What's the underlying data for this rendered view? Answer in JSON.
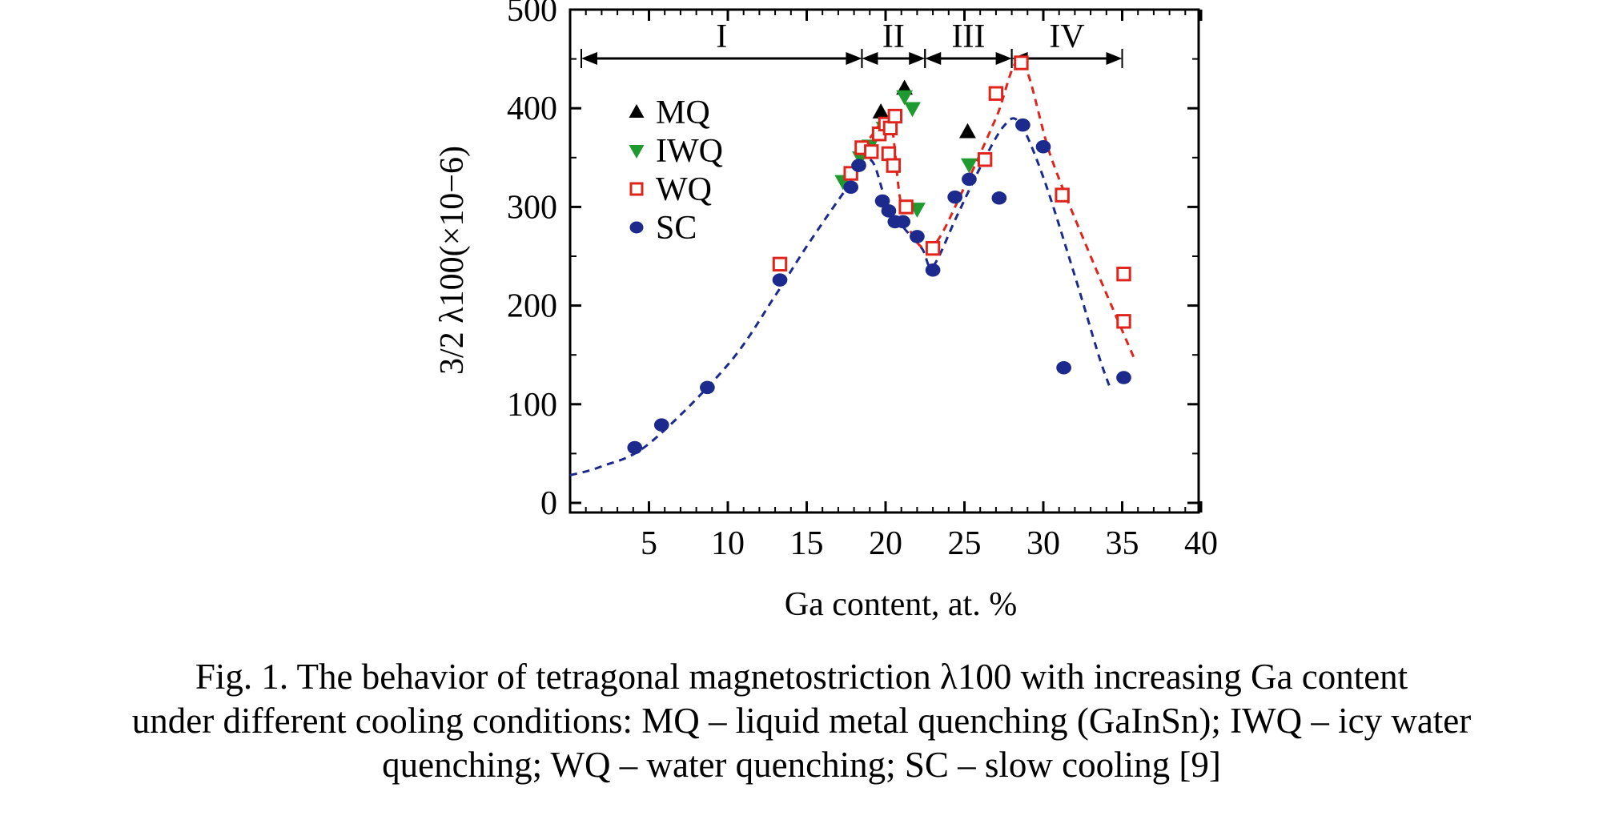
{
  "chart_data": {
    "type": "scatter",
    "xlabel": "Ga content, at. %",
    "ylabel": "3/2 λ100(×10−6)",
    "xlim": [
      0,
      40
    ],
    "ylim": [
      0,
      500
    ],
    "x_ticks": [
      5,
      10,
      15,
      20,
      25,
      30,
      35,
      40
    ],
    "y_ticks": [
      0,
      100,
      200,
      300,
      400,
      500
    ],
    "grid": false,
    "legend_position": "upper-left",
    "regions": [
      {
        "label": "I",
        "from": 0,
        "to": 18.5
      },
      {
        "label": "II",
        "from": 18.5,
        "to": 22.5
      },
      {
        "label": "III",
        "from": 22.5,
        "to": 28
      },
      {
        "label": "IV",
        "from": 28,
        "to": 35
      }
    ],
    "series": [
      {
        "name": "MQ",
        "marker": "triangle-up",
        "color": "#000000",
        "points": [
          [
            19.7,
            396
          ],
          [
            21.2,
            420
          ],
          [
            25.2,
            376
          ]
        ]
      },
      {
        "name": "IWQ",
        "marker": "triangle-down",
        "color": "#1e9a2e",
        "points": [
          [
            17.3,
            326
          ],
          [
            18.4,
            350
          ],
          [
            19.0,
            362
          ],
          [
            19.9,
            380
          ],
          [
            21.2,
            412
          ],
          [
            21.7,
            400
          ],
          [
            22.0,
            298
          ],
          [
            25.3,
            343
          ]
        ]
      },
      {
        "name": "WQ",
        "marker": "square-open",
        "color": "#e0241c",
        "points": [
          [
            13.3,
            242
          ],
          [
            17.8,
            334
          ],
          [
            18.5,
            360
          ],
          [
            19.1,
            356
          ],
          [
            19.6,
            374
          ],
          [
            20.0,
            384
          ],
          [
            20.3,
            380
          ],
          [
            20.6,
            392
          ],
          [
            20.2,
            354
          ],
          [
            20.5,
            342
          ],
          [
            21.3,
            300
          ],
          [
            23.0,
            258
          ],
          [
            27.0,
            415
          ],
          [
            26.3,
            348
          ],
          [
            28.6,
            446
          ],
          [
            31.2,
            312
          ],
          [
            35.1,
            232
          ],
          [
            35.1,
            184
          ]
        ]
      },
      {
        "name": "SC",
        "marker": "circle",
        "color": "#1b2a8c",
        "points": [
          [
            4.1,
            56
          ],
          [
            5.8,
            79
          ],
          [
            8.7,
            117
          ],
          [
            13.3,
            226
          ],
          [
            17.8,
            320
          ],
          [
            18.3,
            342
          ],
          [
            19.8,
            306
          ],
          [
            20.2,
            296
          ],
          [
            20.6,
            285
          ],
          [
            21.1,
            285
          ],
          [
            22.0,
            270
          ],
          [
            23.0,
            236
          ],
          [
            24.4,
            310
          ],
          [
            25.3,
            328
          ],
          [
            27.2,
            309
          ],
          [
            28.7,
            383
          ],
          [
            30.0,
            361
          ],
          [
            31.3,
            137
          ],
          [
            35.1,
            127
          ]
        ]
      }
    ],
    "fit_lines": [
      {
        "series": "SC",
        "color": "#1b2a8c",
        "dash": true,
        "points": [
          [
            0,
            28
          ],
          [
            2,
            37
          ],
          [
            5,
            60
          ],
          [
            10,
            140
          ],
          [
            13,
            210
          ],
          [
            15,
            260
          ],
          [
            17.5,
            318
          ],
          [
            19,
            348
          ],
          [
            20,
            308
          ],
          [
            21,
            282
          ],
          [
            22.3,
            258
          ],
          [
            23,
            240
          ],
          [
            24.5,
            290
          ],
          [
            26,
            340
          ],
          [
            27.5,
            382
          ],
          [
            28.5,
            385
          ],
          [
            30,
            330
          ],
          [
            32,
            230
          ],
          [
            33.5,
            150
          ],
          [
            34.2,
            118
          ]
        ]
      },
      {
        "series": "WQ",
        "color": "#e0241c",
        "dash": true,
        "points": [
          [
            19,
            370
          ],
          [
            20.3,
            385
          ],
          [
            21.1,
            295
          ],
          [
            22.8,
            258
          ],
          [
            25,
            320
          ],
          [
            27,
            390
          ],
          [
            28.6,
            448
          ],
          [
            30.5,
            350
          ],
          [
            33,
            250
          ],
          [
            35.8,
            145
          ]
        ]
      }
    ]
  },
  "caption": {
    "line1": "Fig. 1. The behavior of tetragonal magnetostriction λ100 with increasing Ga content",
    "line2": "under different cooling conditions: MQ – liquid metal quenching (GaInSn); IWQ – icy water",
    "line3": "quenching; WQ – water quenching; SC – slow cooling [9]"
  }
}
